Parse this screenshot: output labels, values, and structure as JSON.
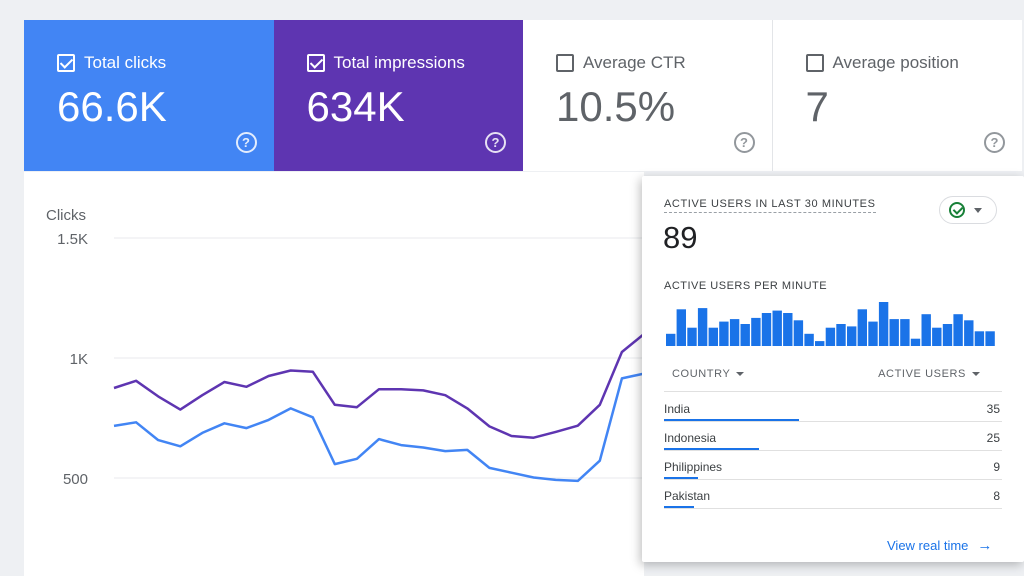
{
  "metrics": [
    {
      "label": "Total clicks",
      "value": "66.6K",
      "checked": true,
      "color": "#4285f4"
    },
    {
      "label": "Total impressions",
      "value": "634K",
      "checked": true,
      "color": "#5e35b1"
    },
    {
      "label": "Average CTR",
      "value": "10.5%",
      "checked": false
    },
    {
      "label": "Average position",
      "value": "7",
      "checked": false
    }
  ],
  "chart_data": {
    "type": "line",
    "ylabel": "Clicks",
    "yticks": [
      "1.5K",
      "1K",
      "500"
    ],
    "ytick_values": [
      1500,
      1000,
      500
    ],
    "series": [
      {
        "color": "#5e35b1",
        "values": [
          875,
          905,
          840,
          785,
          845,
          900,
          880,
          925,
          948,
          943,
          805,
          795,
          870,
          870,
          865,
          845,
          790,
          715,
          675,
          668,
          692,
          718,
          805,
          1025,
          1100
        ]
      },
      {
        "color": "#4285f4",
        "values": [
          717,
          732,
          658,
          632,
          688,
          728,
          708,
          742,
          790,
          753,
          558,
          580,
          662,
          637,
          627,
          612,
          617,
          542,
          522,
          502,
          492,
          488,
          572,
          915,
          935
        ]
      }
    ],
    "grid": true
  },
  "realtime": {
    "title": "ACTIVE USERS IN LAST 30 MINUTES",
    "count": "89",
    "sub_title": "ACTIVE USERS PER MINUTE",
    "per_minute": [
      1,
      3,
      1.5,
      3.1,
      1.5,
      2,
      2.2,
      1.8,
      2.3,
      2.7,
      2.9,
      2.7,
      2.1,
      1,
      0.4,
      1.5,
      1.8,
      1.6,
      3,
      2,
      3.6,
      2.2,
      2.2,
      0.6,
      2.6,
      1.5,
      1.8,
      2.6,
      2.1,
      1.2,
      1.2
    ],
    "bar_color": "#1a73e8",
    "table": {
      "col_country": "COUNTRY",
      "col_users": "ACTIVE USERS",
      "rows": [
        {
          "country": "India",
          "users": "35",
          "share": 0.4
        },
        {
          "country": "Indonesia",
          "users": "25",
          "share": 0.28
        },
        {
          "country": "Philippines",
          "users": "9",
          "share": 0.1
        },
        {
          "country": "Pakistan",
          "users": "8",
          "share": 0.09
        }
      ]
    },
    "view_link": "View real time",
    "link_icon": "arrow-right-icon"
  }
}
